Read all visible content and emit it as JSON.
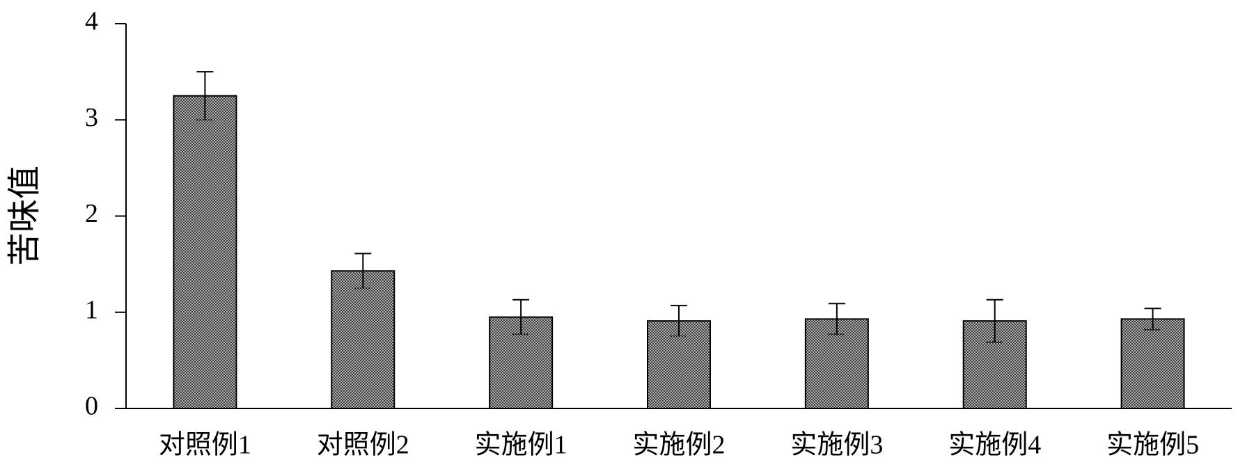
{
  "chart_data": {
    "type": "bar",
    "y_label": "苦味值",
    "categories": [
      "对照例1",
      "对照例2",
      "实施例1",
      "实施例2",
      "实施例3",
      "实施例4",
      "实施例5"
    ],
    "values": [
      3.25,
      1.43,
      0.95,
      0.91,
      0.93,
      0.91,
      0.93
    ],
    "errors": [
      0.25,
      0.18,
      0.18,
      0.16,
      0.16,
      0.22,
      0.11
    ],
    "color": "#7f7f7f",
    "ylim": [
      0,
      4
    ],
    "yticks": [
      0,
      1,
      2,
      3,
      4
    ],
    "grid": false
  }
}
